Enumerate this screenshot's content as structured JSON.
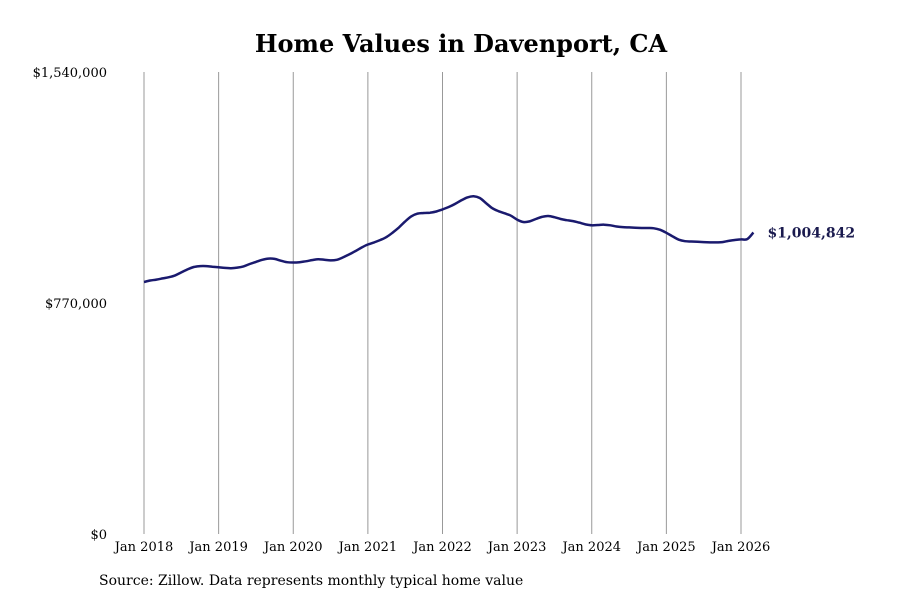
{
  "colors": {
    "line": "#1a1a6e",
    "grid": "#999999",
    "end_label": "#1a1a4e"
  },
  "source": "Source: Zillow. Data represents monthly typical home value",
  "chart_data": {
    "type": "line",
    "title": "Home Values in Davenport, CA",
    "xlabel": "",
    "ylabel": "",
    "x_ticks": [
      "Jan 2018",
      "Jan 2019",
      "Jan 2020",
      "Jan 2021",
      "Jan 2022",
      "Jan 2023",
      "Jan 2024",
      "Jan 2025",
      "Jan 2026"
    ],
    "y_ticks": [
      "$0",
      "$770,000",
      "$1,540,000"
    ],
    "y_tick_values": [
      0,
      770000,
      1540000
    ],
    "ylim": [
      0,
      1540000
    ],
    "x_start": "2018-01",
    "grid": "vertical",
    "legend": "none",
    "end_label": "$1,004,842",
    "series": [
      {
        "values": [
          840000,
          845000,
          848000,
          852000,
          856000,
          862000,
          872000,
          882000,
          890000,
          893000,
          893000,
          891000,
          889000,
          887000,
          886000,
          888000,
          892000,
          900000,
          907000,
          914000,
          918000,
          917000,
          911000,
          906000,
          905000,
          906000,
          909000,
          913000,
          916000,
          914000,
          912000,
          914000,
          922000,
          932000,
          943000,
          955000,
          965000,
          972000,
          980000,
          990000,
          1005000,
          1022000,
          1042000,
          1059000,
          1068000,
          1070000,
          1071000,
          1075000,
          1082000,
          1090000,
          1100000,
          1112000,
          1122000,
          1126000,
          1120000,
          1103000,
          1086000,
          1076000,
          1069000,
          1061000,
          1048000,
          1040000,
          1042000,
          1050000,
          1057000,
          1060000,
          1056000,
          1050000,
          1046000,
          1043000,
          1038000,
          1032000,
          1029000,
          1030000,
          1031000,
          1029000,
          1025000,
          1023000,
          1022000,
          1021000,
          1020000,
          1020000,
          1019000,
          1014000,
          1004000,
          992000,
          981000,
          976000,
          975000,
          974000,
          973000,
          972000,
          972000,
          973000,
          977000,
          980000,
          982000,
          983000,
          1004842
        ]
      }
    ]
  }
}
